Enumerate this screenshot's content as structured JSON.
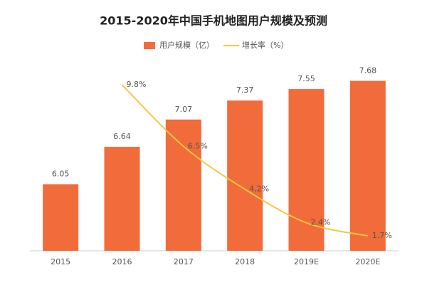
{
  "chart_data": {
    "type": "bar-line",
    "title": "2015-2020年中国手机地图用户规模及预测",
    "categories": [
      "2015",
      "2016",
      "2017",
      "2018",
      "2019E",
      "2020E"
    ],
    "series": [
      {
        "name": "用户规模（亿）",
        "type": "bar",
        "color": "#f26b3a",
        "values": [
          6.05,
          6.64,
          7.07,
          7.37,
          7.55,
          7.68
        ]
      },
      {
        "name": "增长率（%）",
        "type": "line",
        "axis": "y2",
        "color": "#f5c842",
        "values": [
          null,
          9.8,
          6.5,
          4.2,
          2.4,
          1.7
        ],
        "value_labels": [
          null,
          "9.8%",
          "6.5%",
          "4.2%",
          "2.4%",
          "1.7%"
        ]
      }
    ],
    "ylim": [
      5,
      8
    ],
    "y2lim": [
      0.9,
      11.1
    ],
    "legend": "top"
  }
}
